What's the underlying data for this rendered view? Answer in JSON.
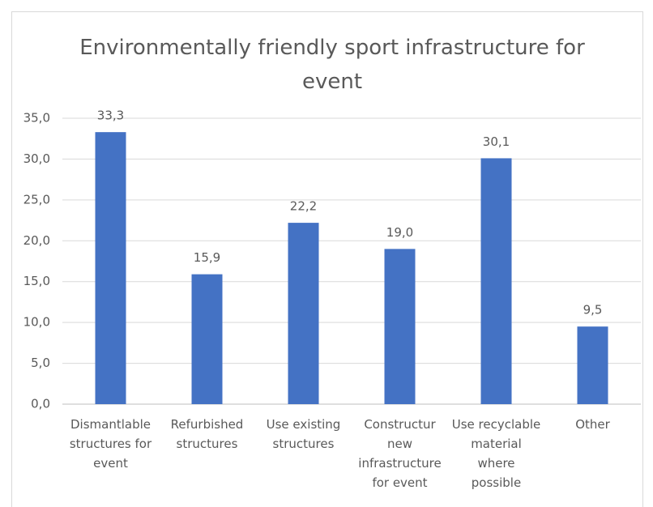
{
  "chart_data": {
    "type": "bar",
    "title": "Environmentally friendly sport infrastructure for event",
    "categories": [
      "Dismantlable structures for event",
      "Refurbished structures",
      "Use existing structures",
      "Constructur new infrastructure for event",
      "Use recyclable material where possible",
      "Other"
    ],
    "values": [
      33.3,
      15.9,
      22.2,
      19.0,
      30.1,
      9.5
    ],
    "value_labels": [
      "33,3",
      "15,9",
      "22,2",
      "19,0",
      "30,1",
      "9,5"
    ],
    "color": "#4472c4",
    "ylim": [
      0,
      35
    ],
    "yticks": [
      {
        "value": 0,
        "label": "0,0"
      },
      {
        "value": 5,
        "label": "5,0"
      },
      {
        "value": 10,
        "label": "10,0"
      },
      {
        "value": 15,
        "label": "15,0"
      },
      {
        "value": 20,
        "label": "20,0"
      },
      {
        "value": 25,
        "label": "25,0"
      },
      {
        "value": 30,
        "label": "30,0"
      },
      {
        "value": 35,
        "label": "35,0"
      }
    ],
    "grid": true
  }
}
